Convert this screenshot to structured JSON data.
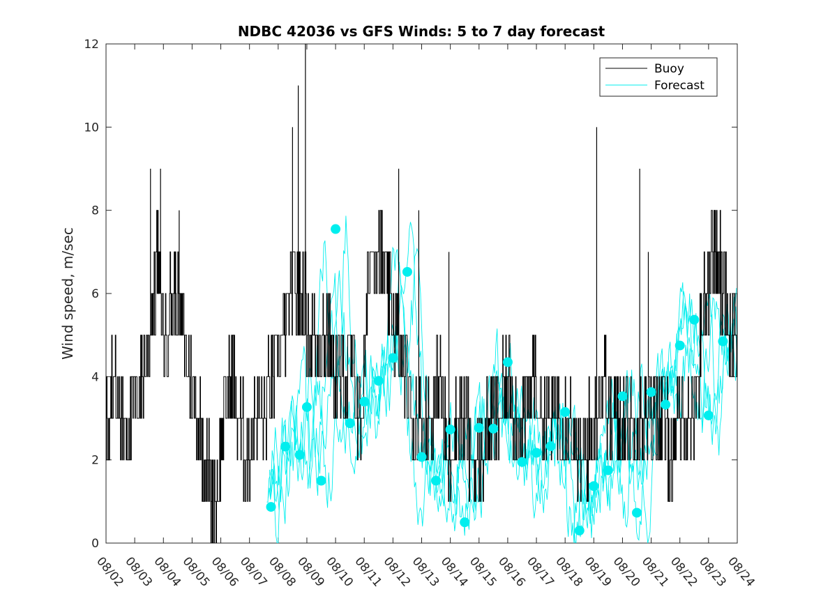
{
  "chart_data": {
    "type": "line",
    "title": "NDBC 42036 vs GFS Winds: 5 to 7 day forecast",
    "xlabel": "",
    "ylabel": "Wind speed, m/sec",
    "xlim": [
      0,
      22
    ],
    "ylim": [
      0,
      12
    ],
    "x_tick_labels": [
      "08/02",
      "08/03",
      "08/04",
      "08/05",
      "08/06",
      "08/07",
      "08/08",
      "08/09",
      "08/10",
      "08/11",
      "08/12",
      "08/13",
      "08/14",
      "08/15",
      "08/16",
      "08/17",
      "08/18",
      "08/19",
      "08/20",
      "08/21",
      "08/22",
      "08/23",
      "08/24"
    ],
    "y_ticks": [
      0,
      2,
      4,
      6,
      8,
      10,
      12
    ],
    "legend": {
      "position": "top-right",
      "entries": [
        {
          "label": "Buoy",
          "color": "#000000"
        },
        {
          "label": "Forecast",
          "color": "#00eeee"
        }
      ]
    },
    "colors": {
      "buoy": "#000000",
      "forecast": "#00eeee",
      "marker": "#00eeee"
    },
    "buoy_anchor_points": {
      "x": [
        0.0,
        0.2,
        0.5,
        0.9,
        1.2,
        1.5,
        1.8,
        2.0,
        2.4,
        2.7,
        2.9,
        3.2,
        3.5,
        3.8,
        4.1,
        4.4,
        4.6,
        4.9,
        5.2,
        5.5,
        5.8,
        6.2,
        6.5,
        6.8,
        7.1,
        7.4,
        7.7,
        8.0,
        8.3,
        8.6,
        8.9,
        9.2,
        9.5,
        9.8,
        10.1,
        10.4,
        10.7,
        11.0,
        11.3,
        11.6,
        11.9,
        12.2,
        12.5,
        12.8,
        13.1,
        13.4,
        13.7,
        14.0,
        14.3,
        14.6,
        14.9,
        15.2,
        15.5,
        15.8,
        16.1,
        16.4,
        16.7,
        17.0,
        17.3,
        17.6,
        17.9,
        18.2,
        18.5,
        18.8,
        19.1,
        19.4,
        19.7,
        20.0,
        20.3,
        20.6,
        20.9,
        21.2,
        21.5,
        21.8,
        22.0
      ],
      "y": [
        3,
        4,
        3,
        3,
        4,
        5,
        7,
        5,
        6,
        5,
        4,
        3,
        2,
        1,
        3,
        4,
        3,
        2,
        3,
        3,
        4,
        5,
        6,
        6,
        5,
        5,
        5,
        4,
        4,
        4,
        3,
        7,
        7,
        6,
        5,
        4,
        3,
        3,
        3,
        4,
        2,
        3,
        3,
        2,
        2,
        3,
        3,
        4,
        3,
        3,
        4,
        3,
        3,
        3,
        3,
        2,
        2,
        3,
        4,
        3,
        3,
        3,
        3,
        3,
        3,
        3,
        2,
        3,
        3,
        4,
        6,
        7,
        6,
        5,
        5
      ],
      "spikes": [
        [
          1.55,
          9
        ],
        [
          1.9,
          9
        ],
        [
          2.55,
          8
        ],
        [
          6.5,
          10
        ],
        [
          6.7,
          11
        ],
        [
          6.95,
          12
        ],
        [
          10.2,
          9
        ],
        [
          10.9,
          8
        ],
        [
          11.95,
          7
        ],
        [
          17.1,
          10
        ],
        [
          18.6,
          9
        ],
        [
          18.9,
          7
        ]
      ]
    },
    "forecast_markers": {
      "x": [
        5.75,
        6.25,
        6.75,
        7.0,
        7.5,
        8.0,
        8.5,
        9.0,
        9.5,
        10.0,
        10.5,
        11.0,
        11.5,
        12.0,
        12.5,
        13.0,
        13.5,
        14.0,
        14.5,
        15.0,
        15.5,
        16.0,
        16.5,
        17.0,
        17.5,
        18.0,
        18.5,
        19.0,
        19.5,
        20.0,
        20.5,
        21.0,
        21.5
      ],
      "y": [
        0.87,
        2.32,
        2.12,
        3.27,
        1.5,
        7.55,
        2.88,
        3.4,
        3.9,
        4.45,
        6.52,
        2.07,
        1.5,
        2.73,
        0.5,
        2.77,
        2.75,
        4.35,
        1.95,
        2.17,
        2.33,
        3.15,
        0.3,
        1.37,
        1.75,
        3.53,
        0.73,
        3.63,
        3.33,
        4.75,
        5.37,
        3.07,
        4.85
      ]
    }
  }
}
